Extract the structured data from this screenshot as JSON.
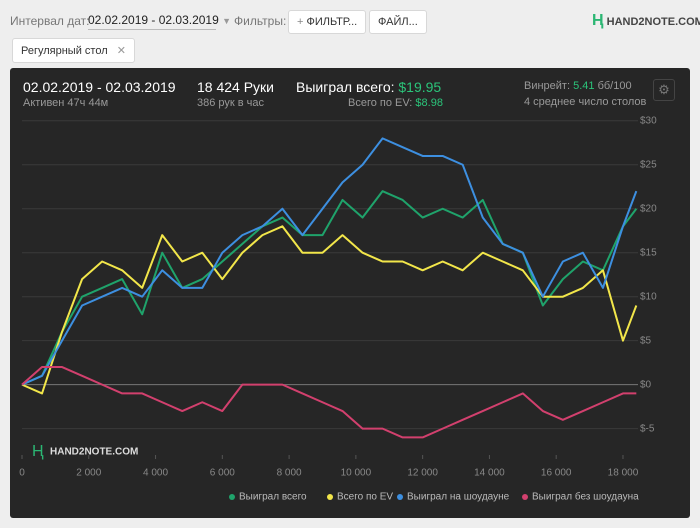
{
  "header": {
    "date_label": "Интервал дат:",
    "date_range": "02.02.2019 - 02.03.2019",
    "filters_label": "Фильтры:",
    "filter_button": "ФИЛЬТР...",
    "file_button": "ФАЙЛ...",
    "brand": "HAND2NOTE.COM",
    "tag": "Регулярный стол"
  },
  "summary": {
    "period": "02.02.2019 - 02.03.2019",
    "active": "Активен 47ч 44м",
    "hands": "18 424 Руки",
    "hands_per_hour": "386 рук в час",
    "won_label": "Выиграл всего:",
    "won_value": "$19.95",
    "ev_label": "Всего по EV:",
    "ev_value": "$8.98",
    "winrate_label": "Винрейт:",
    "winrate_value": "5.41",
    "winrate_unit": "бб/100",
    "tables": "4 среднее число столов"
  },
  "chart_data": {
    "type": "line",
    "watermark": "HAND2NOTE.COM",
    "x": [
      0,
      600,
      1200,
      1800,
      2400,
      3000,
      3600,
      4200,
      4800,
      5400,
      6000,
      6600,
      7200,
      7800,
      8400,
      9000,
      9600,
      10200,
      10800,
      11400,
      12000,
      12600,
      13200,
      13800,
      14400,
      15000,
      15600,
      16200,
      16800,
      17400,
      18000,
      18400
    ],
    "series": [
      {
        "name": "Выиграл всего",
        "color": "#1fa36b",
        "values": [
          0,
          1,
          6,
          10,
          11,
          12,
          8,
          15,
          11,
          12,
          14,
          16,
          18,
          19,
          17,
          17,
          21,
          19,
          22,
          21,
          19,
          20,
          19,
          21,
          16,
          15,
          9,
          12,
          14,
          13,
          18,
          20
        ]
      },
      {
        "name": "Всего по EV",
        "color": "#f2e64a",
        "values": [
          0,
          -1,
          6,
          12,
          14,
          13,
          11,
          17,
          14,
          15,
          12,
          15,
          17,
          18,
          15,
          15,
          17,
          15,
          14,
          14,
          13,
          14,
          13,
          15,
          14,
          13,
          10,
          10,
          11,
          13,
          5,
          9
        ]
      },
      {
        "name": "Выиграл на шоудауне",
        "color": "#3d8fe0",
        "values": [
          0,
          1,
          5,
          9,
          10,
          11,
          10,
          13,
          11,
          11,
          15,
          17,
          18,
          20,
          17,
          20,
          23,
          25,
          28,
          27,
          26,
          26,
          25,
          19,
          16,
          15,
          10,
          14,
          15,
          11,
          18,
          22
        ]
      },
      {
        "name": "Выиграл без шоудауна",
        "color": "#d2406e",
        "values": [
          0,
          2,
          2,
          1,
          0,
          -1,
          -1,
          -2,
          -3,
          -2,
          -3,
          0,
          0,
          0,
          -1,
          -2,
          -3,
          -5,
          -5,
          -6,
          -6,
          -5,
          -4,
          -3,
          -2,
          -1,
          -3,
          -4,
          -3,
          -2,
          -1,
          -1
        ]
      }
    ],
    "xlim": [
      0,
      18450
    ],
    "xticks": [
      0,
      {
        "value": 2000,
        "label": "2 000"
      },
      {
        "value": 4000,
        "label": "4 000"
      },
      {
        "value": 6000,
        "label": "6 000"
      },
      {
        "value": 8000,
        "label": "8 000"
      },
      {
        "value": 10000,
        "label": "10 000"
      },
      {
        "value": 12000,
        "label": "12 000"
      },
      {
        "value": 14000,
        "label": "14 000"
      },
      {
        "value": 16000,
        "label": "16 000"
      },
      {
        "value": 18000,
        "label": "18 000"
      }
    ],
    "ylim": [
      -8,
      31
    ],
    "yticks": [
      {
        "value": 30,
        "label": "$30"
      },
      {
        "value": 25,
        "label": "$25"
      },
      {
        "value": 20,
        "label": "$20"
      },
      {
        "value": 15,
        "label": "$15"
      },
      {
        "value": 10,
        "label": "$10"
      },
      {
        "value": 5,
        "label": "$5"
      },
      {
        "value": 0,
        "label": "$0"
      },
      {
        "value": -5,
        "label": "$-5"
      }
    ],
    "grid": true
  }
}
